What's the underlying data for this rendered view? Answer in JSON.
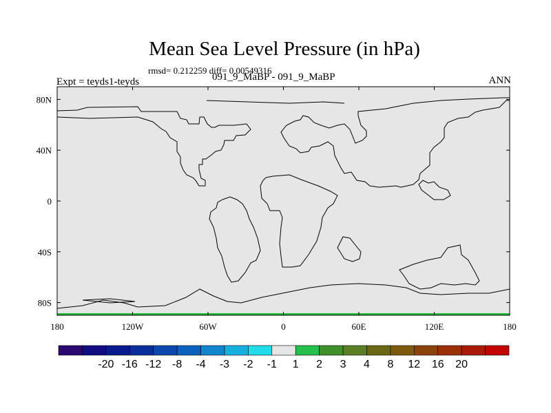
{
  "chart_data": {
    "type": "heatmap",
    "title": "Mean Sea Level Pressure (in hPa)",
    "stats_text": "rmsd= 0.212259 diff= 0.00549316",
    "left_string": "Expt = teyds1-teyds",
    "center_string": "091_9_MaBP - 091_9_MaBP",
    "right_string": "ANN",
    "x_range": [
      -180,
      180
    ],
    "y_range": [
      -90,
      90
    ],
    "x_ticks": [
      {
        "value": -180,
        "label": "180"
      },
      {
        "value": -120,
        "label": "120W"
      },
      {
        "value": -60,
        "label": "60W"
      },
      {
        "value": 0,
        "label": "0"
      },
      {
        "value": 60,
        "label": "60E"
      },
      {
        "value": 120,
        "label": "120E"
      },
      {
        "value": 180,
        "label": "180"
      }
    ],
    "y_ticks": [
      {
        "value": 80,
        "label": "80N"
      },
      {
        "value": 40,
        "label": "40N"
      },
      {
        "value": 0,
        "label": "0"
      },
      {
        "value": -40,
        "label": "40S"
      },
      {
        "value": -80,
        "label": "80S"
      }
    ],
    "field_value_range": [
      -1,
      1
    ],
    "field_color": "#e6e6e6",
    "coast_color": "#000000",
    "colorbar": {
      "colors": [
        "#2a0a72",
        "#120c83",
        "#091a8e",
        "#0a2f9b",
        "#0b47ad",
        "#0b62bd",
        "#1186cd",
        "#17afdc",
        "#20dcea",
        "#e6e6e6",
        "#26bf4b",
        "#3f8f2b",
        "#5b7f24",
        "#6b6815",
        "#7d5a0d",
        "#8b430b",
        "#9a2f08",
        "#aa1a08",
        "#c20606"
      ],
      "labels": [
        "-20",
        "-16",
        "-12",
        "-8",
        "-4",
        "-3",
        "-2",
        "-1",
        "1",
        "2",
        "3",
        "4",
        "8",
        "12",
        "16",
        "20"
      ]
    }
  }
}
